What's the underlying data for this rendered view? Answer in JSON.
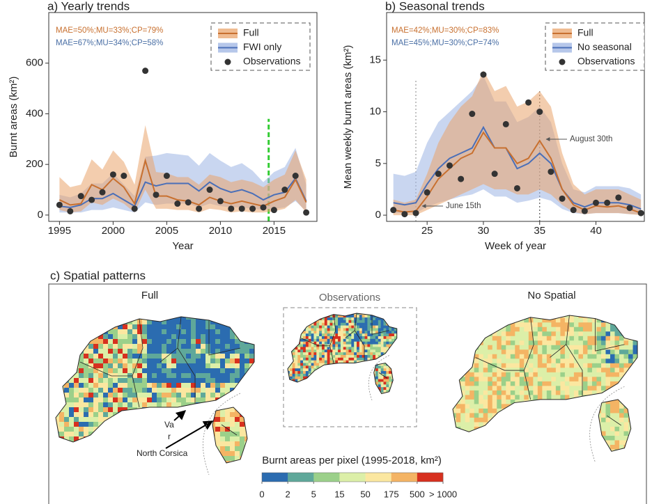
{
  "chart_data": [
    {
      "type": "line",
      "title": "a) Yearly trends",
      "xlabel": "Year",
      "ylabel": "Burnt areas (km²)",
      "x": [
        1995,
        1996,
        1997,
        1998,
        1999,
        2000,
        2001,
        2002,
        2003,
        2004,
        2005,
        2006,
        2007,
        2008,
        2009,
        2010,
        2011,
        2012,
        2013,
        2014,
        2015,
        2016,
        2017,
        2018
      ],
      "xlim": [
        1994,
        2019
      ],
      "xticks": [
        1995,
        2000,
        2005,
        2010,
        2015
      ],
      "ylim": [
        -25,
        800
      ],
      "yticks": [
        0,
        200,
        400,
        600
      ],
      "annotations": [
        {
          "text": "MAE=50%;MU=33%;CP=79%",
          "color": "#c8702f"
        },
        {
          "text": "MAE=67%;MU=34%;CP=58%",
          "color": "#4a6fa5"
        }
      ],
      "vlines": [
        {
          "x": 2014.5,
          "top": 380,
          "color": "#33cc33",
          "style": "dashed"
        }
      ],
      "series": [
        {
          "name": "FWI only",
          "style": "band",
          "color": "#4a6fb8",
          "band_color": "#9db4e3",
          "values": [
            35,
            30,
            40,
            65,
            65,
            85,
            60,
            35,
            130,
            115,
            125,
            125,
            125,
            95,
            130,
            105,
            90,
            100,
            85,
            60,
            80,
            90,
            145,
            55
          ],
          "upper": [
            80,
            70,
            85,
            125,
            125,
            165,
            120,
            75,
            230,
            235,
            245,
            240,
            235,
            195,
            245,
            215,
            190,
            205,
            175,
            130,
            170,
            190,
            265,
            120
          ],
          "lower": [
            10,
            10,
            10,
            20,
            20,
            30,
            20,
            10,
            50,
            40,
            45,
            45,
            45,
            30,
            45,
            35,
            30,
            30,
            25,
            20,
            25,
            30,
            55,
            15
          ]
        },
        {
          "name": "Full",
          "style": "band",
          "color": "#c8702f",
          "band_color": "#eaa46c",
          "values": [
            60,
            40,
            45,
            120,
            100,
            145,
            110,
            45,
            215,
            75,
            75,
            60,
            55,
            40,
            70,
            55,
            45,
            55,
            45,
            35,
            55,
            70,
            140,
            50
          ],
          "upper": [
            150,
            110,
            120,
            220,
            180,
            255,
            210,
            120,
            355,
            170,
            165,
            150,
            150,
            120,
            160,
            150,
            130,
            140,
            130,
            110,
            140,
            160,
            255,
            140
          ],
          "lower": [
            20,
            10,
            15,
            50,
            40,
            65,
            45,
            10,
            100,
            25,
            25,
            20,
            20,
            10,
            25,
            20,
            10,
            15,
            10,
            10,
            15,
            25,
            60,
            10
          ]
        },
        {
          "name": "Observations",
          "style": "points",
          "color": "#333333",
          "values": [
            40,
            15,
            75,
            60,
            90,
            160,
            155,
            25,
            570,
            80,
            155,
            45,
            50,
            25,
            100,
            55,
            25,
            25,
            25,
            30,
            20,
            100,
            155,
            10
          ]
        }
      ],
      "legend_order": [
        1,
        0,
        2
      ],
      "legend": "upper right"
    },
    {
      "type": "line",
      "title": "b) Seasonal trends",
      "xlabel": "Week of year",
      "ylabel": "Mean weekly burnt areas (km²)",
      "x": [
        22,
        23,
        24,
        25,
        26,
        27,
        28,
        29,
        30,
        31,
        32,
        33,
        34,
        35,
        36,
        37,
        38,
        39,
        40,
        41,
        42,
        43,
        44
      ],
      "xlim": [
        21.4,
        44.3
      ],
      "xticks": [
        25,
        30,
        35,
        40
      ],
      "ylim": [
        -0.6,
        19.6
      ],
      "yticks": [
        0,
        5,
        10,
        15
      ],
      "annotations": [
        {
          "text": "MAE=42%;MU=30%;CP=83%",
          "color": "#c8702f"
        },
        {
          "text": "MAE=45%;MU=30%;CP=74%",
          "color": "#4a6fa5"
        },
        {
          "text": "August 30th",
          "color": "#444444"
        },
        {
          "text": "June 15th",
          "color": "#444444"
        }
      ],
      "vlines": [
        {
          "x": 24,
          "top": 13,
          "color": "#999999",
          "style": "dotted"
        },
        {
          "x": 35,
          "top": 12,
          "color": "#555555",
          "style": "dotted"
        }
      ],
      "series": [
        {
          "name": "No seasonal",
          "style": "band",
          "color": "#4a6fb8",
          "band_color": "#9db4e3",
          "values": [
            1.2,
            1,
            1.2,
            3,
            4.5,
            5.5,
            6,
            6.5,
            8.5,
            6.5,
            6.5,
            4.5,
            5,
            6,
            5,
            2.5,
            1.2,
            0.8,
            1.2,
            1.2,
            1.2,
            1,
            0.6
          ],
          "upper": [
            4,
            3.8,
            4.2,
            7,
            9,
            10,
            11,
            12,
            13.5,
            11,
            11,
            9,
            9.5,
            10.5,
            9,
            5,
            2.5,
            2.2,
            2.8,
            2.8,
            2.8,
            2.6,
            2
          ],
          "lower": [
            0.2,
            0.2,
            0.2,
            0.8,
            1.2,
            1.5,
            1.8,
            2,
            2.5,
            1.8,
            1.8,
            1.2,
            1.4,
            1.7,
            1.4,
            0.6,
            0.2,
            0.1,
            0.2,
            0.2,
            0.2,
            0.1,
            0.1
          ]
        },
        {
          "name": "Full",
          "style": "band",
          "color": "#c8702f",
          "band_color": "#eaa46c",
          "values": [
            0.5,
            0.3,
            0.4,
            1.8,
            3.5,
            4.5,
            5.5,
            6,
            8,
            6.5,
            6.5,
            5,
            5.5,
            7.2,
            5.5,
            2.5,
            1,
            0.5,
            0.9,
            0.8,
            0.9,
            0.6,
            0.2
          ],
          "upper": [
            1.5,
            1.2,
            1.5,
            4,
            7,
            9,
            10.5,
            11.5,
            14,
            12,
            12.5,
            10.5,
            11,
            12,
            10.5,
            6,
            3,
            2,
            2.5,
            2.5,
            2.5,
            2,
            1.5
          ],
          "lower": [
            0,
            0,
            0,
            0.5,
            1,
            1.5,
            2,
            2.5,
            3,
            2.5,
            2.5,
            2,
            2,
            2.5,
            2,
            1,
            0.3,
            0.1,
            0.2,
            0.2,
            0.2,
            0.1,
            0
          ]
        },
        {
          "name": "Observations",
          "style": "points",
          "color": "#333333",
          "values": [
            0.5,
            0.1,
            0.2,
            2.2,
            4,
            4.8,
            3.5,
            9.8,
            13.6,
            4,
            8.8,
            2.6,
            10.9,
            10,
            4.2,
            1.6,
            0.5,
            0.4,
            1.2,
            1.2,
            1.7,
            0.7,
            0.2
          ]
        }
      ],
      "legend_order": [
        1,
        0,
        2
      ],
      "legend": "upper right"
    }
  ],
  "spatial": {
    "title": "c) Spatial patterns",
    "maps": [
      "Full",
      "Observations",
      "No Spatial"
    ],
    "var_label": [
      "Va",
      "r"
    ],
    "corsica_label": "North Corsica",
    "colorbar": {
      "title": "Burnt areas per pixel (1995-2018, km²)",
      "ticks": [
        0,
        2,
        5,
        15,
        50,
        175,
        500,
        {
          "value": 1000,
          "label": "> 1000"
        }
      ],
      "colors": [
        "#2b6cb0",
        "#5fa89a",
        "#9bd08a",
        "#dcefa8",
        "#fbe7a0",
        "#f4b464",
        "#d7301f"
      ]
    }
  }
}
